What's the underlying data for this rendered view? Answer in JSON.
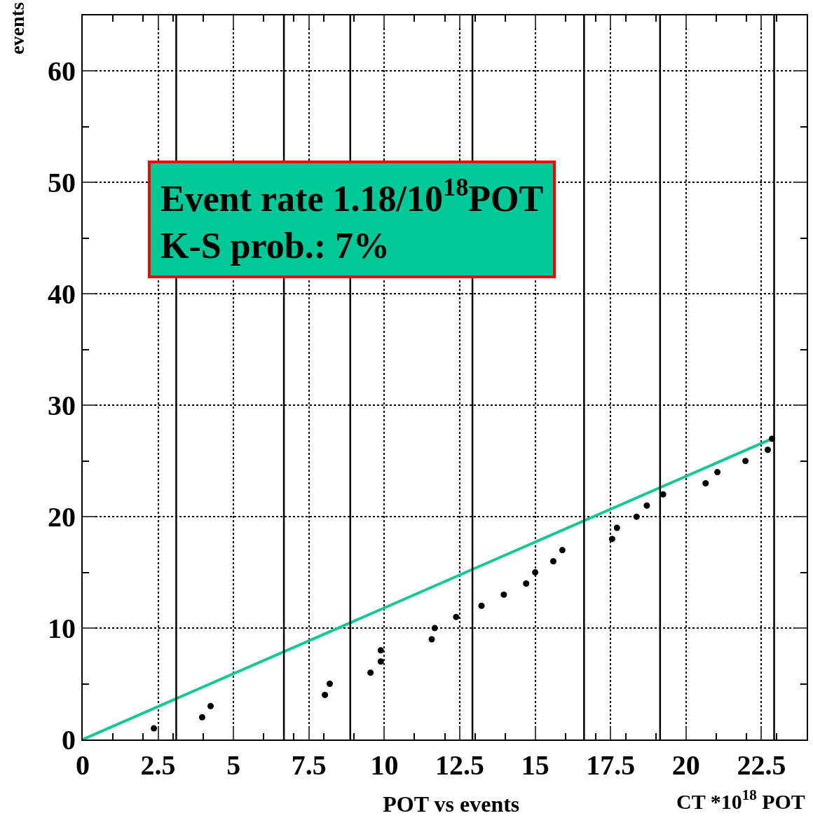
{
  "chart_data": {
    "type": "scatter",
    "title": "POT vs events",
    "xlabel": "CT *10$^{18}$ POT",
    "ylabel": "events",
    "annotations": [
      "Event rate 1.18/10$^{18}$POT\nK-S prob.: 7%"
    ],
    "xlim": [
      0,
      24
    ],
    "xticks": [
      0,
      2.5,
      5,
      7.5,
      10,
      12.5,
      15,
      17.5,
      20,
      22.5
    ],
    "ylim": [
      0,
      65
    ],
    "yticks": [
      0,
      10,
      20,
      30,
      40,
      50,
      60
    ],
    "grid": true,
    "legend": false,
    "marker": "circle",
    "series": [
      {
        "color": "#000000",
        "x": [
          2.36,
          3.96,
          4.24,
          8.03,
          8.19,
          9.54,
          9.88,
          9.88,
          11.57,
          11.67,
          12.38,
          13.22,
          13.96,
          14.7,
          15.0,
          15.6,
          15.9,
          17.55,
          17.71,
          18.36,
          18.7,
          19.24,
          20.65,
          21.04,
          21.97,
          22.71,
          22.85
        ],
        "values": [
          1,
          2,
          3,
          4,
          5,
          6,
          7,
          8,
          9,
          10,
          11,
          12,
          13,
          14,
          15,
          16,
          17,
          18,
          19,
          20,
          21,
          22,
          23,
          24,
          25,
          26,
          27
        ]
      },
      {
        "type": "line",
        "marker": "none",
        "color": "#14c896",
        "x": [
          0,
          22.85
        ],
        "values": [
          0,
          27.0
        ]
      }
    ],
    "ref_lines": [
      {
        "axis": "x",
        "value": 3.1,
        "color": "#000000"
      },
      {
        "axis": "x",
        "value": 6.67,
        "color": "#000000"
      },
      {
        "axis": "x",
        "value": 8.87,
        "color": "#000000"
      },
      {
        "axis": "x",
        "value": 12.92,
        "color": "#000000"
      },
      {
        "axis": "x",
        "value": 16.62,
        "color": "#000000"
      },
      {
        "axis": "x",
        "value": 19.14,
        "color": "#000000"
      },
      {
        "axis": "x",
        "value": 22.92,
        "color": "#000000"
      }
    ]
  }
}
